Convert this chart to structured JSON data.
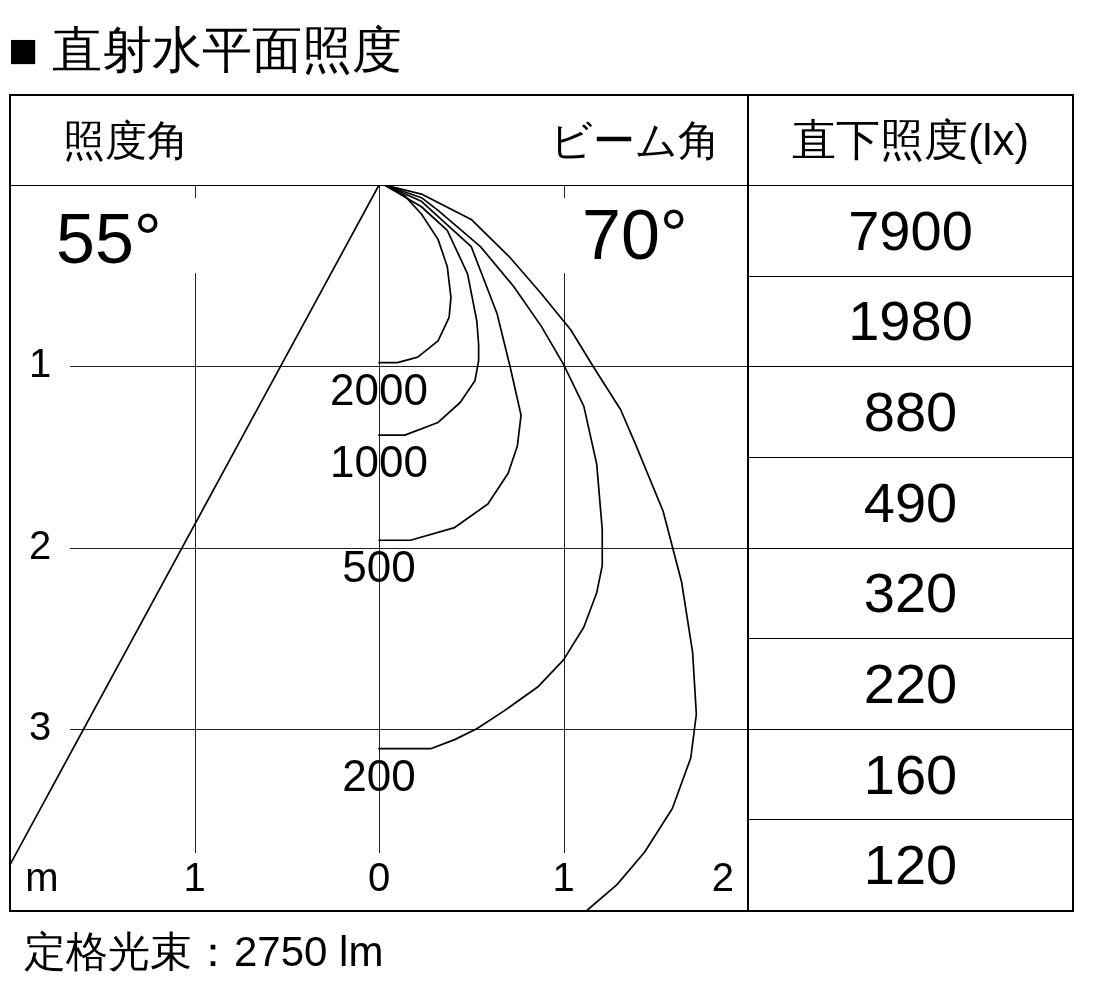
{
  "chart_data": {
    "type": "line",
    "title": "■ 直射水平面照度",
    "xlabel": "m",
    "xlim": [
      -2,
      2
    ],
    "xticks": [
      {
        "value": -1,
        "label": "1"
      },
      0,
      1,
      2
    ],
    "ylim": [
      4,
      0
    ],
    "yticks": [
      1,
      2,
      3
    ],
    "grid": true,
    "series": [
      {
        "name": "2000",
        "color": "#000000",
        "x": [
          0.03,
          0.14,
          0.23,
          0.32,
          0.37,
          0.39,
          0.38,
          0.32,
          0.21,
          0.1,
          0
        ],
        "values": [
          0,
          0.06,
          0.16,
          0.3,
          0.45,
          0.62,
          0.73,
          0.86,
          0.95,
          0.98,
          0.98
        ]
      },
      {
        "name": "1000",
        "color": "#000000",
        "x": [
          0.03,
          0.23,
          0.37,
          0.48,
          0.53,
          0.54,
          0.54,
          0.52,
          0.44,
          0.32,
          0.14,
          0
        ],
        "values": [
          0,
          0.12,
          0.25,
          0.49,
          0.75,
          0.88,
          0.97,
          1.08,
          1.2,
          1.31,
          1.38,
          1.38
        ]
      },
      {
        "name": "500",
        "color": "#000000",
        "x": [
          0.03,
          0.23,
          0.5,
          0.64,
          0.71,
          0.77,
          0.75,
          0.7,
          0.59,
          0.41,
          0.17,
          0
        ],
        "values": [
          0,
          0.09,
          0.34,
          0.71,
          1.0,
          1.27,
          1.44,
          1.59,
          1.76,
          1.89,
          1.96,
          1.96
        ]
      },
      {
        "name": "200",
        "color": "#000000",
        "x": [
          0.03,
          0.23,
          0.32,
          0.55,
          0.73,
          0.88,
          1.0,
          1.11,
          1.18,
          1.21,
          1.21,
          1.18,
          1.11,
          1.0,
          0.86,
          0.68,
          0.53,
          0.41,
          0.28,
          0
        ],
        "values": [
          0,
          0.07,
          0.14,
          0.34,
          0.56,
          0.78,
          0.99,
          1.22,
          1.54,
          1.9,
          2.1,
          2.25,
          2.44,
          2.62,
          2.77,
          2.9,
          3.0,
          3.06,
          3.11,
          3.11
        ]
      },
      {
        "color": "#000000",
        "x": [
          0.03,
          0.23,
          0.5,
          0.71,
          0.88,
          1.04,
          1.16,
          1.31,
          1.39,
          1.54,
          1.64,
          1.7,
          1.72,
          1.69,
          1.59,
          1.44,
          1.29,
          1.13
        ],
        "values": [
          0,
          0.05,
          0.19,
          0.4,
          0.6,
          0.8,
          1.0,
          1.24,
          1.43,
          1.8,
          2.19,
          2.58,
          2.92,
          3.16,
          3.44,
          3.68,
          3.86,
          4.0
        ]
      },
      {
        "color": "#000000",
        "x": [
          0,
          -2
        ],
        "values": [
          0,
          3.75
        ]
      }
    ],
    "annotations": [
      "照度角",
      "55°",
      "ビーム角",
      "70°",
      "直下照度(lx)",
      "7900",
      "1980",
      "880",
      "490",
      "320",
      "220",
      "160",
      "120",
      "定格光束：2750 lm"
    ]
  }
}
